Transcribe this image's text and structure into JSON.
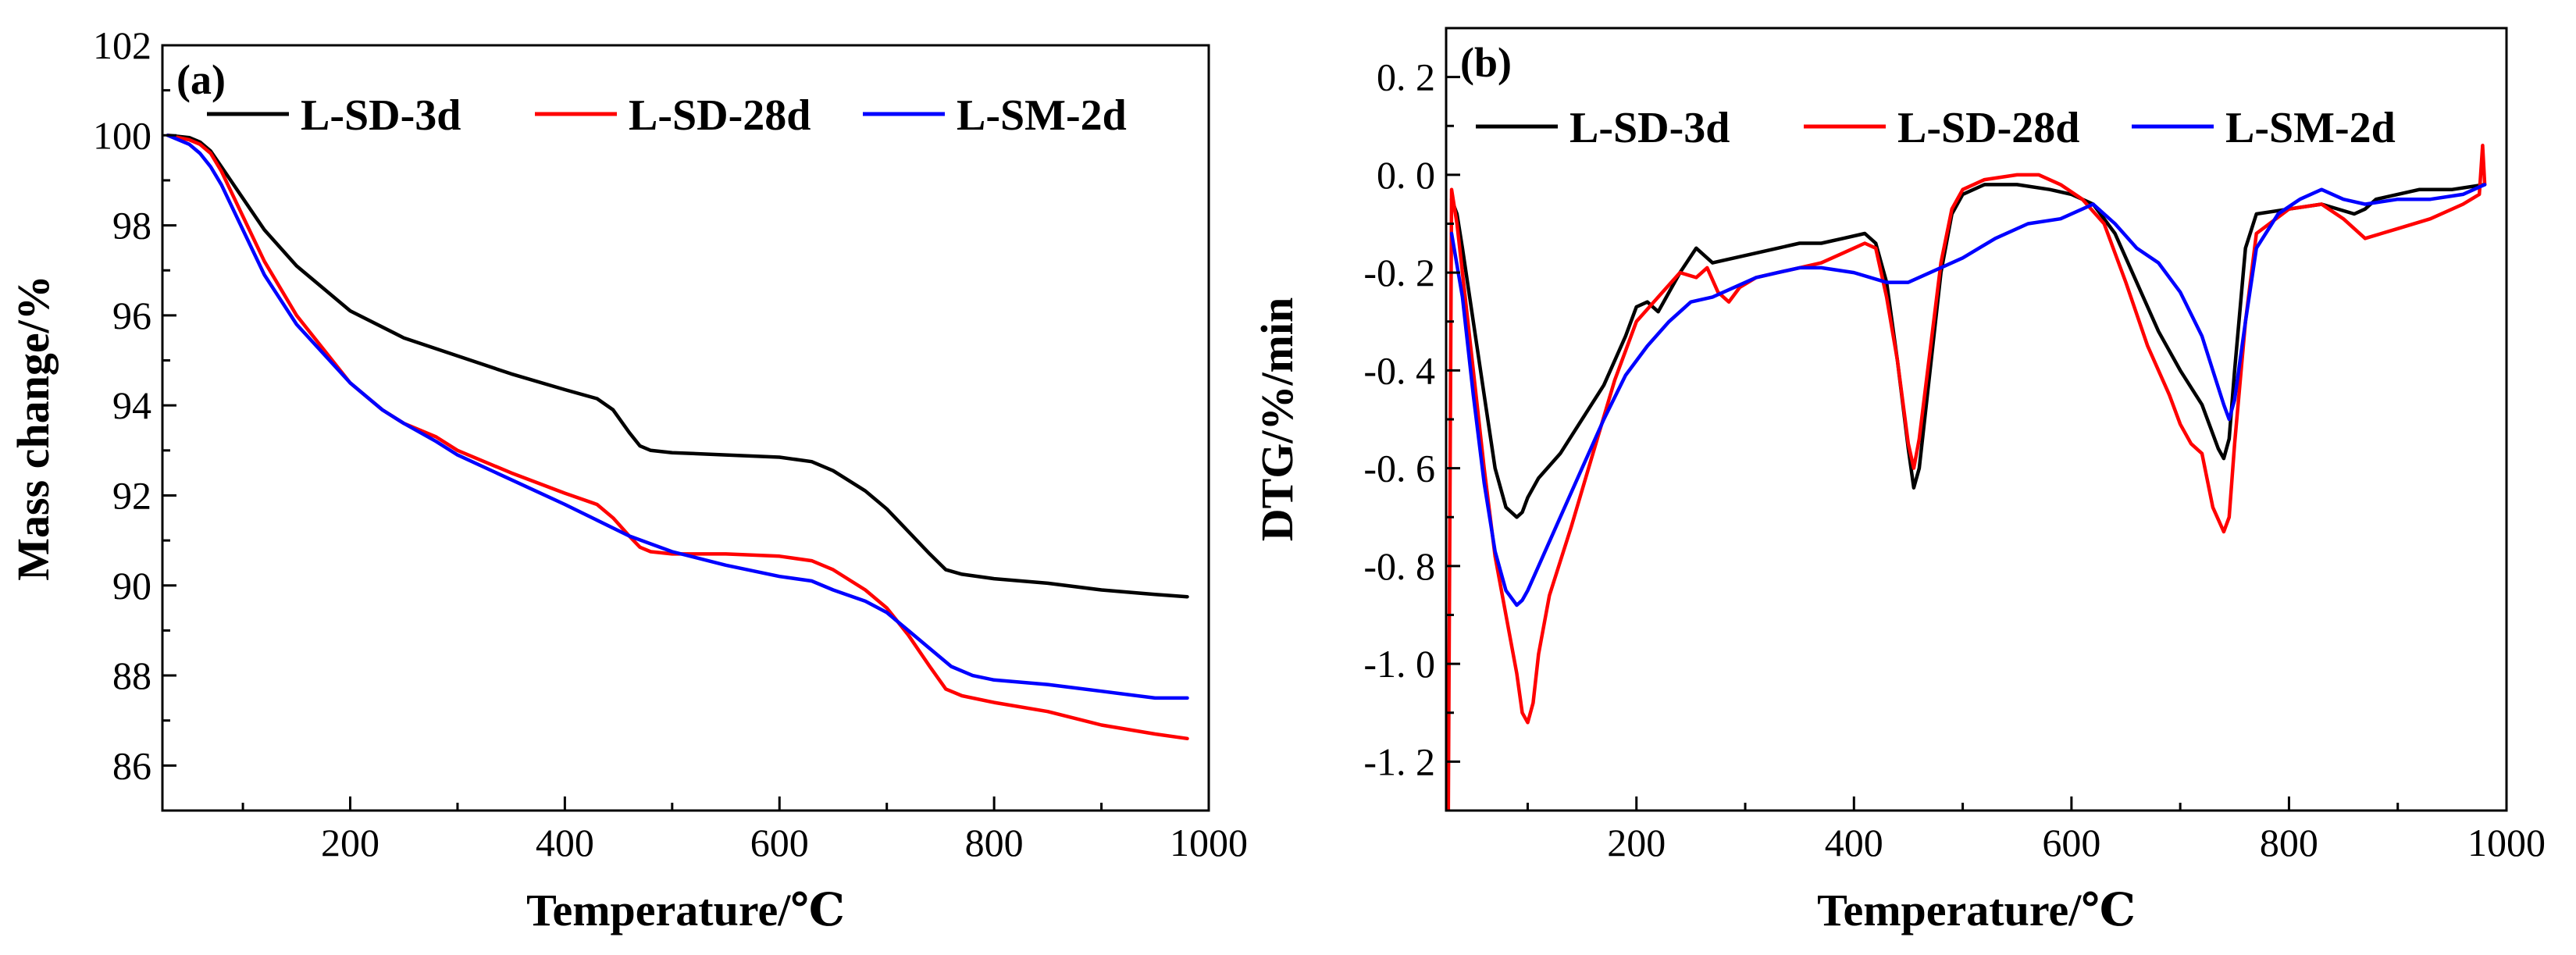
{
  "chart_data": [
    {
      "type": "line",
      "panel_label": "(a)",
      "xlabel": "Temperature/℃",
      "ylabel": "Mass change/%",
      "xlim": [
        25,
        1000
      ],
      "ylim": [
        85,
        102
      ],
      "xticks": [
        200,
        400,
        600,
        800,
        1000
      ],
      "yticks": [
        86,
        88,
        90,
        92,
        94,
        96,
        98,
        100,
        102
      ],
      "legend": [
        "L-SD-3d",
        "L-SD-28d",
        "L-SM-2d"
      ],
      "legend_position": "top",
      "series": [
        {
          "name": "L-SD-3d",
          "color": "#000000",
          "x": [
            30,
            50,
            60,
            70,
            80,
            100,
            120,
            150,
            200,
            250,
            300,
            350,
            400,
            430,
            445,
            460,
            470,
            480,
            500,
            550,
            600,
            630,
            650,
            680,
            700,
            720,
            740,
            755,
            770,
            800,
            850,
            900,
            950,
            980
          ],
          "y": [
            100.0,
            99.95,
            99.85,
            99.65,
            99.3,
            98.6,
            97.9,
            97.1,
            96.1,
            95.5,
            95.1,
            94.7,
            94.35,
            94.15,
            93.9,
            93.4,
            93.1,
            93.0,
            92.95,
            92.9,
            92.85,
            92.75,
            92.55,
            92.1,
            91.7,
            91.2,
            90.7,
            90.35,
            90.25,
            90.15,
            90.05,
            89.9,
            89.8,
            89.75
          ]
        },
        {
          "name": "L-SD-28d",
          "color": "#ff0000",
          "x": [
            30,
            50,
            60,
            70,
            80,
            100,
            120,
            150,
            200,
            230,
            250,
            280,
            300,
            350,
            400,
            430,
            445,
            460,
            470,
            480,
            500,
            550,
            600,
            630,
            650,
            680,
            700,
            720,
            740,
            755,
            770,
            800,
            850,
            900,
            950,
            980
          ],
          "y": [
            100.0,
            99.9,
            99.8,
            99.6,
            99.2,
            98.2,
            97.2,
            96.0,
            94.5,
            93.9,
            93.6,
            93.3,
            93.0,
            92.5,
            92.05,
            91.8,
            91.5,
            91.1,
            90.85,
            90.75,
            90.7,
            90.7,
            90.65,
            90.55,
            90.35,
            89.9,
            89.5,
            88.9,
            88.2,
            87.7,
            87.55,
            87.4,
            87.2,
            86.9,
            86.7,
            86.6
          ]
        },
        {
          "name": "L-SM-2d",
          "color": "#0000ff",
          "x": [
            30,
            50,
            60,
            70,
            80,
            100,
            120,
            150,
            200,
            230,
            250,
            280,
            300,
            350,
            400,
            430,
            460,
            500,
            550,
            600,
            630,
            650,
            680,
            700,
            720,
            740,
            760,
            780,
            800,
            850,
            900,
            950,
            980
          ],
          "y": [
            100.0,
            99.8,
            99.6,
            99.3,
            98.9,
            97.9,
            96.9,
            95.8,
            94.5,
            93.9,
            93.6,
            93.2,
            92.9,
            92.35,
            91.8,
            91.45,
            91.1,
            90.75,
            90.45,
            90.2,
            90.1,
            89.9,
            89.65,
            89.4,
            89.0,
            88.6,
            88.2,
            88.0,
            87.9,
            87.8,
            87.65,
            87.5,
            87.5
          ]
        }
      ]
    },
    {
      "type": "line",
      "panel_label": "(b)",
      "xlabel": "Temperature/℃",
      "ylabel": "DTG/%/min",
      "xlim": [
        25,
        1000
      ],
      "ylim": [
        -1.3,
        0.3
      ],
      "xticks": [
        200,
        400,
        600,
        800,
        1000
      ],
      "yticks": [
        0.2,
        0.0,
        -0.2,
        -0.4,
        -0.6,
        -0.8,
        -1.0,
        -1.2
      ],
      "ytick_labels": [
        "0. 2",
        "0. 0",
        "-0. 2",
        "-0. 4",
        "-0. 6",
        "-0. 8",
        "-1. 0",
        "-1. 2"
      ],
      "legend": [
        "L-SD-3d",
        "L-SD-28d",
        "L-SM-2d"
      ],
      "legend_position": "top",
      "series": [
        {
          "name": "L-SD-3d",
          "color": "#000000",
          "x": [
            30,
            35,
            40,
            50,
            60,
            70,
            80,
            90,
            95,
            100,
            110,
            130,
            150,
            170,
            190,
            200,
            210,
            220,
            240,
            255,
            270,
            290,
            310,
            330,
            350,
            370,
            390,
            410,
            420,
            430,
            440,
            450,
            455,
            460,
            470,
            480,
            490,
            500,
            520,
            550,
            580,
            600,
            620,
            640,
            660,
            680,
            700,
            720,
            735,
            740,
            745,
            750,
            760,
            770,
            800,
            830,
            860,
            870,
            880,
            900,
            920,
            950,
            980
          ],
          "y": [
            -0.05,
            -0.08,
            -0.15,
            -0.3,
            -0.45,
            -0.6,
            -0.68,
            -0.7,
            -0.69,
            -0.66,
            -0.62,
            -0.57,
            -0.5,
            -0.43,
            -0.33,
            -0.27,
            -0.26,
            -0.28,
            -0.2,
            -0.15,
            -0.18,
            -0.17,
            -0.16,
            -0.15,
            -0.14,
            -0.14,
            -0.13,
            -0.12,
            -0.14,
            -0.22,
            -0.38,
            -0.56,
            -0.64,
            -0.6,
            -0.4,
            -0.2,
            -0.08,
            -0.04,
            -0.02,
            -0.02,
            -0.03,
            -0.04,
            -0.06,
            -0.12,
            -0.22,
            -0.32,
            -0.4,
            -0.47,
            -0.56,
            -0.58,
            -0.54,
            -0.4,
            -0.15,
            -0.08,
            -0.07,
            -0.06,
            -0.08,
            -0.07,
            -0.05,
            -0.04,
            -0.03,
            -0.03,
            -0.02
          ]
        },
        {
          "name": "L-SD-28d",
          "color": "#ff0000",
          "x": [
            27,
            30,
            35,
            40,
            50,
            60,
            70,
            80,
            90,
            95,
            100,
            105,
            110,
            120,
            140,
            160,
            180,
            200,
            220,
            240,
            255,
            265,
            275,
            285,
            295,
            310,
            330,
            350,
            370,
            390,
            410,
            420,
            430,
            440,
            450,
            455,
            460,
            470,
            480,
            490,
            500,
            520,
            550,
            570,
            590,
            610,
            630,
            650,
            670,
            690,
            700,
            710,
            720,
            730,
            740,
            745,
            750,
            760,
            770,
            800,
            830,
            850,
            870,
            900,
            930,
            960,
            975,
            978,
            980
          ],
          "y": [
            -1.3,
            -0.03,
            -0.1,
            -0.2,
            -0.4,
            -0.6,
            -0.78,
            -0.9,
            -1.02,
            -1.1,
            -1.12,
            -1.08,
            -0.98,
            -0.86,
            -0.72,
            -0.57,
            -0.42,
            -0.3,
            -0.25,
            -0.2,
            -0.21,
            -0.19,
            -0.24,
            -0.26,
            -0.23,
            -0.21,
            -0.2,
            -0.19,
            -0.18,
            -0.16,
            -0.14,
            -0.15,
            -0.25,
            -0.38,
            -0.55,
            -0.6,
            -0.54,
            -0.36,
            -0.18,
            -0.07,
            -0.03,
            -0.01,
            0.0,
            0.0,
            -0.02,
            -0.05,
            -0.1,
            -0.22,
            -0.35,
            -0.45,
            -0.51,
            -0.55,
            -0.57,
            -0.68,
            -0.73,
            -0.7,
            -0.55,
            -0.3,
            -0.12,
            -0.07,
            -0.06,
            -0.09,
            -0.13,
            -0.11,
            -0.09,
            -0.06,
            -0.04,
            0.06,
            -0.02
          ]
        },
        {
          "name": "L-SM-2d",
          "color": "#0000ff",
          "x": [
            30,
            40,
            50,
            60,
            70,
            80,
            90,
            95,
            100,
            110,
            130,
            150,
            170,
            190,
            210,
            230,
            250,
            270,
            290,
            310,
            330,
            350,
            370,
            400,
            430,
            450,
            470,
            500,
            530,
            560,
            590,
            610,
            620,
            640,
            660,
            680,
            700,
            720,
            730,
            740,
            745,
            750,
            760,
            770,
            790,
            810,
            830,
            850,
            870,
            900,
            930,
            960,
            980
          ],
          "y": [
            -0.12,
            -0.25,
            -0.45,
            -0.63,
            -0.77,
            -0.85,
            -0.88,
            -0.87,
            -0.85,
            -0.8,
            -0.7,
            -0.6,
            -0.5,
            -0.41,
            -0.35,
            -0.3,
            -0.26,
            -0.25,
            -0.23,
            -0.21,
            -0.2,
            -0.19,
            -0.19,
            -0.2,
            -0.22,
            -0.22,
            -0.2,
            -0.17,
            -0.13,
            -0.1,
            -0.09,
            -0.07,
            -0.06,
            -0.1,
            -0.15,
            -0.18,
            -0.24,
            -0.33,
            -0.4,
            -0.47,
            -0.5,
            -0.46,
            -0.3,
            -0.15,
            -0.08,
            -0.05,
            -0.03,
            -0.05,
            -0.06,
            -0.05,
            -0.05,
            -0.04,
            -0.02
          ]
        }
      ]
    }
  ]
}
